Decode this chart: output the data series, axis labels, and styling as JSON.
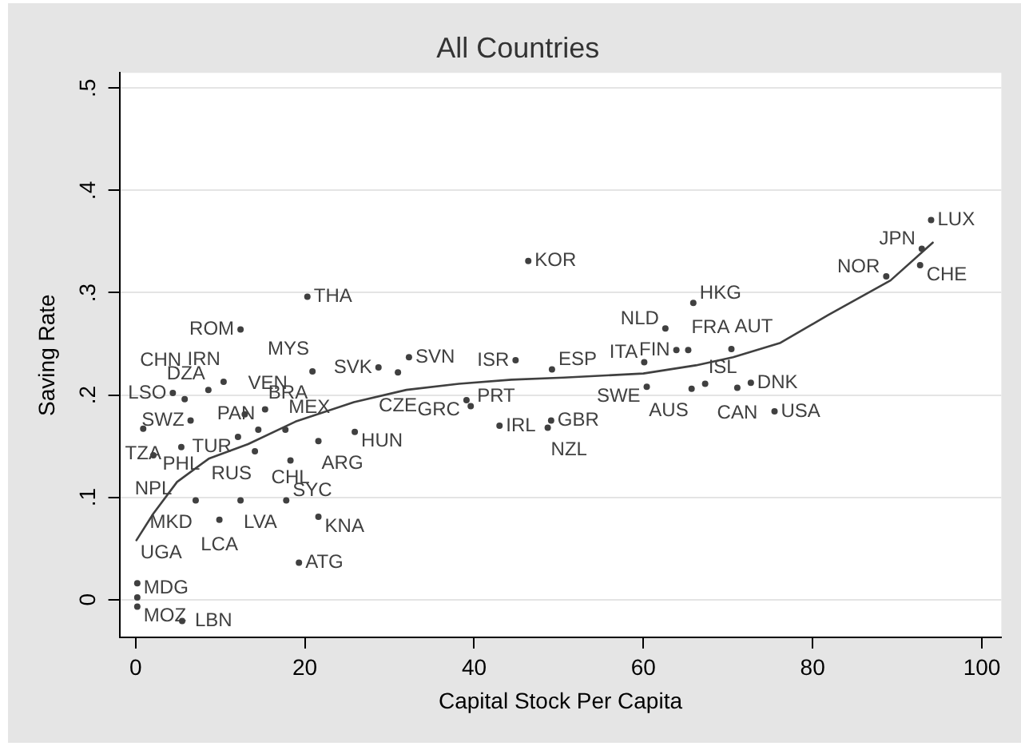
{
  "chart_data": {
    "type": "scatter",
    "title": "All Countries",
    "xlabel": "Capital Stock Per Capita",
    "ylabel": "Saving Rate",
    "xlim": [
      -1.9,
      102.3
    ],
    "ylim": [
      -0.037,
      0.515
    ],
    "xticks": [
      0,
      20,
      40,
      60,
      80,
      100
    ],
    "yticks": [
      0,
      {
        "value": 0.1,
        "label": ".1"
      },
      {
        "value": 0.2,
        "label": ".2"
      },
      {
        "value": 0.3,
        "label": ".3"
      },
      {
        "value": 0.4,
        "label": ".4"
      },
      {
        "value": 0.5,
        "label": ".5"
      }
    ],
    "grid": "y",
    "series": [
      {
        "color": "#404040",
        "marker": "circle",
        "x": [
          94.0,
          92.9,
          92.7,
          88.7,
          65.9,
          62.6,
          63.9,
          65.3,
          70.4,
          60.1,
          60.4,
          65.7,
          67.3,
          71.1,
          72.7,
          75.5,
          46.4,
          44.9,
          49.2,
          39.1,
          39.6,
          43.0,
          49.1,
          48.7,
          32.3,
          28.7,
          31.0,
          20.9,
          20.3,
          12.4,
          25.9,
          21.6,
          17.7,
          14.5,
          12.9,
          15.3,
          10.4,
          8.6,
          4.4,
          5.8,
          0.9,
          6.5,
          14.1,
          18.3,
          12.4,
          17.8,
          21.6,
          19.3,
          5.5,
          0.2,
          0.2,
          0.2,
          2.1,
          5.4,
          9.9,
          7.1,
          12.1
        ],
        "values": [
          0.371,
          0.343,
          0.327,
          0.316,
          0.29,
          0.265,
          0.244,
          0.244,
          0.245,
          0.232,
          0.208,
          0.206,
          0.211,
          0.207,
          0.212,
          0.184,
          0.331,
          0.234,
          0.225,
          0.195,
          0.189,
          0.17,
          0.175,
          0.168,
          0.237,
          0.227,
          0.222,
          0.223,
          0.296,
          0.264,
          0.164,
          0.155,
          0.166,
          0.166,
          0.181,
          0.186,
          0.213,
          0.205,
          0.202,
          0.196,
          0.167,
          0.175,
          0.145,
          0.136,
          0.097,
          0.097,
          0.081,
          0.036,
          -0.021,
          -0.007,
          0.002,
          0.016,
          0.141,
          0.149,
          0.078,
          0.097,
          0.159
        ],
        "value_labels": [
          "LUX",
          "JPN",
          "CHE",
          "NOR",
          "HKG",
          "NLD",
          "FIN",
          "FRA",
          "AUT",
          "ITA",
          "SWE",
          "AUS",
          "ISL",
          "CAN",
          "DNK",
          "USA",
          "KOR",
          "ISR",
          "ESP",
          "GRC",
          "PRT",
          "IRL",
          "GBR",
          "NZL",
          "SVN",
          "SVK",
          "CZE",
          "MYS",
          "THA",
          "ROM",
          "HUN",
          "ARG",
          "MEX",
          "PAN",
          "VEN",
          "BRA",
          "IRN",
          "DZA",
          "LSO",
          "CHN",
          "TZA",
          "SWZ",
          "RUS",
          "CHL",
          "LVA",
          "SYC",
          "KNA",
          "ATG",
          "LBN",
          "MOZ",
          "MDG",
          "UGA",
          "NPL",
          "PHL",
          "LCA",
          "MKD",
          "TUR"
        ]
      },
      {
        "type": "line",
        "color": "#404040",
        "x": [
          0.1,
          2.1,
          4.9,
          8.7,
          13.3,
          18.9,
          25.8,
          32.0,
          38.2,
          44.4,
          50.6,
          60.0,
          66.2,
          70.6,
          76.2,
          81.8,
          89.2,
          94.2
        ],
        "values": [
          0.058,
          0.084,
          0.115,
          0.138,
          0.152,
          0.174,
          0.193,
          0.205,
          0.211,
          0.215,
          0.217,
          0.221,
          0.229,
          0.237,
          0.251,
          0.278,
          0.312,
          0.349
        ]
      }
    ]
  }
}
